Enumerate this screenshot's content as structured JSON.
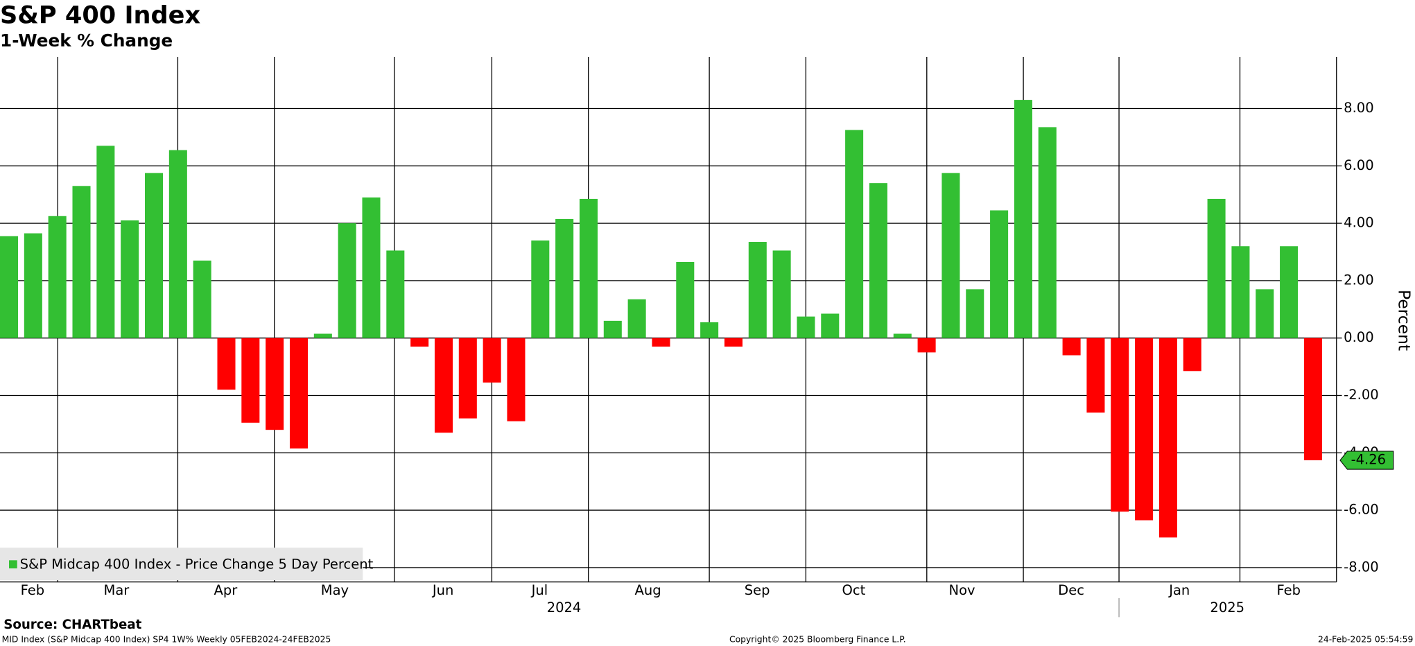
{
  "chart_data": {
    "type": "bar",
    "title": "S&P 400 Index",
    "subtitle": "1-Week % Change",
    "y_label": "Percent",
    "series": [
      {
        "name": "S&P Midcap 400 Index - Price Change 5 Day Percent",
        "color": "#33bf33",
        "negative_color": "#ff0000",
        "values": [
          3.55,
          3.65,
          4.25,
          5.3,
          6.7,
          4.1,
          5.75,
          6.55,
          2.7,
          -1.8,
          -2.95,
          -3.2,
          -3.85,
          0.15,
          4.0,
          4.9,
          3.05,
          -0.3,
          -3.3,
          -2.8,
          -1.55,
          -2.9,
          3.4,
          4.15,
          4.85,
          0.6,
          1.35,
          -0.3,
          2.65,
          0.55,
          -0.3,
          3.35,
          3.05,
          0.75,
          0.85,
          7.25,
          5.4,
          0.15,
          -0.5,
          5.75,
          1.7,
          4.45,
          8.3,
          7.35,
          -0.6,
          -2.6,
          -6.05,
          -6.35,
          -6.95,
          -1.15,
          4.85,
          3.2,
          1.7,
          3.2,
          -4.26
        ]
      }
    ],
    "last_value_label": "-4.26",
    "months": [
      "Feb",
      "Mar",
      "Apr",
      "May",
      "Jun",
      "Jul",
      "Aug",
      "Sep",
      "Oct",
      "Nov",
      "Dec",
      "Jan",
      "Feb"
    ],
    "years": [
      "2024",
      "2025"
    ],
    "ylim": [
      -8.5,
      9.8
    ],
    "yticks": [
      {
        "value": -8,
        "label": "-8.00"
      },
      {
        "value": -6,
        "label": "-6.00"
      },
      {
        "value": -4,
        "label": "-4.00"
      },
      {
        "value": -2,
        "label": "-2.00"
      },
      {
        "value": 0,
        "label": "0.00"
      },
      {
        "value": 2,
        "label": "2.00"
      },
      {
        "value": 4,
        "label": "4.00"
      },
      {
        "value": 6,
        "label": "6.00"
      },
      {
        "value": 8,
        "label": "8.00"
      }
    ],
    "grid": true,
    "source": "Source: CHARTbeat",
    "footer_left": "MID Index (S&P Midcap 400 Index) SP4 1W% Weekly 05FEB2024-24FEB2025",
    "footer_center": "Copyright© 2025 Bloomberg Finance L.P.",
    "footer_right": "24-Feb-2025 05:54:59"
  }
}
